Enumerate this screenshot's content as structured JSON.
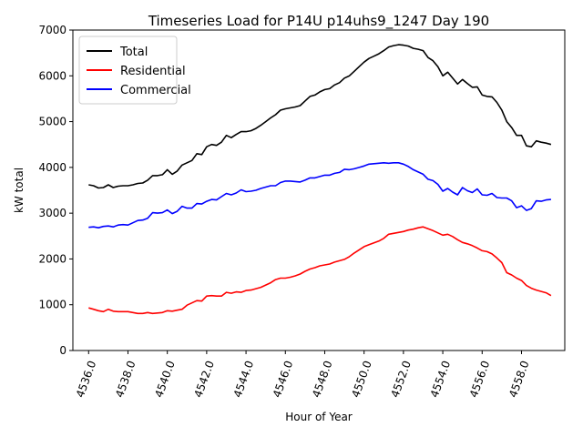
{
  "chart_data": {
    "type": "line",
    "title": "Timeseries Load for P14U p14uhs9_1247  Day 190",
    "xlabel": "Hour of Year",
    "ylabel": "kW total",
    "xlim": [
      4535.2,
      4560.2
    ],
    "ylim": [
      0,
      7000
    ],
    "xticks": [
      4536,
      4538,
      4540,
      4542,
      4544,
      4546,
      4548,
      4550,
      4552,
      4554,
      4556,
      4558
    ],
    "xtick_labels": [
      "4536.0",
      "4538.0",
      "4540.0",
      "4542.0",
      "4544.0",
      "4546.0",
      "4548.0",
      "4550.0",
      "4552.0",
      "4554.0",
      "4556.0",
      "4558.0"
    ],
    "yticks": [
      0,
      1000,
      2000,
      3000,
      4000,
      5000,
      6000,
      7000
    ],
    "ytick_labels": [
      "0",
      "1000",
      "2000",
      "3000",
      "4000",
      "5000",
      "6000",
      "7000"
    ],
    "legend_position": "top-left",
    "x": [
      4536.0,
      4536.25,
      4536.5,
      4536.75,
      4537.0,
      4537.25,
      4537.5,
      4537.75,
      4538.0,
      4538.25,
      4538.5,
      4538.75,
      4539.0,
      4539.25,
      4539.5,
      4539.75,
      4540.0,
      4540.25,
      4540.5,
      4540.75,
      4541.0,
      4541.25,
      4541.5,
      4541.75,
      4542.0,
      4542.25,
      4542.5,
      4542.75,
      4543.0,
      4543.25,
      4543.5,
      4543.75,
      4544.0,
      4544.25,
      4544.5,
      4544.75,
      4545.0,
      4545.25,
      4545.5,
      4545.75,
      4546.0,
      4546.25,
      4546.5,
      4546.75,
      4547.0,
      4547.25,
      4547.5,
      4547.75,
      4548.0,
      4548.25,
      4548.5,
      4548.75,
      4549.0,
      4549.25,
      4549.5,
      4549.75,
      4550.0,
      4550.25,
      4550.5,
      4550.75,
      4551.0,
      4551.25,
      4551.5,
      4551.75,
      4552.0,
      4552.25,
      4552.5,
      4552.75,
      4553.0,
      4553.25,
      4553.5,
      4553.75,
      4554.0,
      4554.25,
      4554.5,
      4554.75,
      4555.0,
      4555.25,
      4555.5,
      4555.75,
      4556.0,
      4556.25,
      4556.5,
      4556.75,
      4557.0,
      4557.25,
      4557.5,
      4557.75,
      4558.0,
      4558.25,
      4558.5,
      4558.75,
      4559.0,
      4559.25,
      4559.5
    ],
    "series": [
      {
        "name": "Total",
        "color": "#000000",
        "values": [
          3620,
          3600,
          3550,
          3560,
          3620,
          3560,
          3590,
          3600,
          3600,
          3620,
          3650,
          3660,
          3720,
          3820,
          3820,
          3840,
          3950,
          3850,
          3920,
          4050,
          4100,
          4150,
          4300,
          4280,
          4450,
          4500,
          4480,
          4550,
          4700,
          4650,
          4720,
          4780,
          4780,
          4800,
          4850,
          4920,
          5000,
          5080,
          5150,
          5250,
          5280,
          5300,
          5320,
          5350,
          5450,
          5550,
          5580,
          5650,
          5700,
          5720,
          5800,
          5850,
          5950,
          6000,
          6100,
          6200,
          6300,
          6380,
          6430,
          6480,
          6550,
          6630,
          6660,
          6680,
          6670,
          6650,
          6600,
          6580,
          6550,
          6400,
          6330,
          6200,
          6000,
          6080,
          5950,
          5820,
          5920,
          5830,
          5750,
          5760,
          5580,
          5550,
          5540,
          5420,
          5250,
          5000,
          4870,
          4700,
          4700,
          4470,
          4450,
          4580,
          4550,
          4530,
          4500
        ]
      },
      {
        "name": "Residential",
        "color": "#ff0000",
        "values": [
          930,
          900,
          870,
          850,
          900,
          860,
          850,
          850,
          850,
          830,
          810,
          810,
          830,
          810,
          820,
          830,
          870,
          860,
          880,
          900,
          990,
          1040,
          1090,
          1080,
          1190,
          1200,
          1190,
          1190,
          1270,
          1250,
          1280,
          1270,
          1310,
          1320,
          1350,
          1380,
          1430,
          1480,
          1550,
          1580,
          1580,
          1600,
          1630,
          1670,
          1730,
          1780,
          1810,
          1850,
          1870,
          1890,
          1930,
          1960,
          1990,
          2050,
          2130,
          2200,
          2270,
          2310,
          2350,
          2390,
          2450,
          2540,
          2560,
          2580,
          2600,
          2630,
          2650,
          2680,
          2700,
          2660,
          2620,
          2570,
          2520,
          2540,
          2490,
          2420,
          2360,
          2330,
          2290,
          2240,
          2180,
          2160,
          2110,
          2020,
          1920,
          1700,
          1650,
          1580,
          1530,
          1420,
          1360,
          1320,
          1290,
          1260,
          1200
        ]
      },
      {
        "name": "Commercial",
        "color": "#0000ff",
        "values": [
          2690,
          2700,
          2680,
          2710,
          2720,
          2700,
          2740,
          2750,
          2740,
          2790,
          2840,
          2850,
          2890,
          3010,
          3000,
          3010,
          3070,
          2990,
          3040,
          3150,
          3110,
          3110,
          3210,
          3200,
          3260,
          3300,
          3290,
          3360,
          3430,
          3400,
          3440,
          3510,
          3470,
          3480,
          3500,
          3540,
          3570,
          3600,
          3600,
          3670,
          3700,
          3700,
          3690,
          3680,
          3720,
          3770,
          3770,
          3800,
          3830,
          3830,
          3870,
          3890,
          3960,
          3950,
          3970,
          4000,
          4030,
          4070,
          4080,
          4090,
          4100,
          4090,
          4100,
          4100,
          4070,
          4020,
          3950,
          3900,
          3850,
          3740,
          3710,
          3630,
          3480,
          3540,
          3460,
          3400,
          3560,
          3490,
          3450,
          3530,
          3400,
          3390,
          3430,
          3340,
          3330,
          3330,
          3270,
          3120,
          3160,
          3060,
          3100,
          3270,
          3260,
          3290,
          3300
        ]
      }
    ]
  }
}
